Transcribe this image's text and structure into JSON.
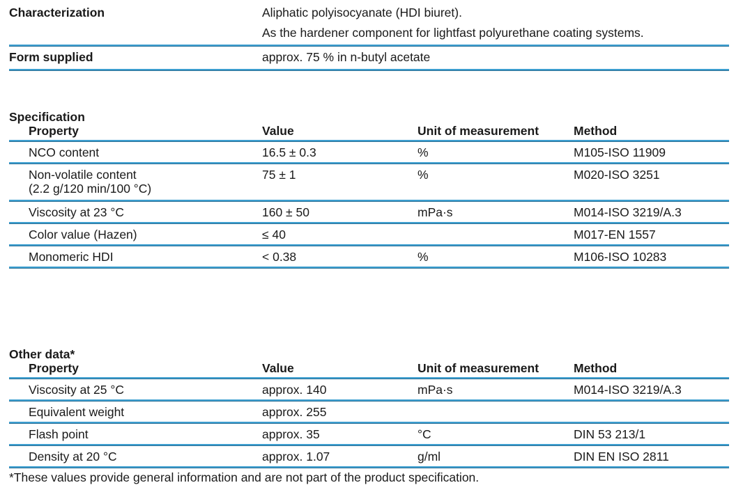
{
  "info": [
    {
      "label": "Characterization",
      "lines": [
        "Aliphatic polyisocyanate (HDI biuret).",
        "As the hardener component for lightfast polyurethane coating systems."
      ]
    },
    {
      "label": "Form supplied",
      "lines": [
        "approx. 75 % in n-butyl acetate"
      ]
    }
  ],
  "specification": {
    "title": "Specification",
    "headers": [
      "Property",
      "Value",
      "Unit of measurement",
      "Method"
    ],
    "rows": [
      {
        "property": "NCO content",
        "property2": "",
        "value": "16.5 ± 0.3",
        "unit": "%",
        "method": "M105-ISO 11909"
      },
      {
        "property": "Non-volatile content",
        "property2": "(2.2 g/120 min/100 °C)",
        "value": "75 ± 1",
        "unit": "%",
        "method": "M020-ISO 3251"
      },
      {
        "property": "Viscosity at 23 °C",
        "property2": "",
        "value": "160 ± 50",
        "unit": "mPa·s",
        "method": "M014-ISO 3219/A.3"
      },
      {
        "property": "Color value (Hazen)",
        "property2": "",
        "value": "≤ 40",
        "unit": "",
        "method": "M017-EN 1557"
      },
      {
        "property": "Monomeric HDI",
        "property2": "",
        "value": "< 0.38",
        "unit": "%",
        "method": "M106-ISO 10283"
      }
    ]
  },
  "other": {
    "title": "Other data*",
    "headers": [
      "Property",
      "Value",
      "Unit of measurement",
      "Method"
    ],
    "rows": [
      {
        "property": "Viscosity at 25 °C",
        "value": "approx. 140",
        "unit": "mPa·s",
        "method": "M014-ISO 3219/A.3"
      },
      {
        "property": "Equivalent weight",
        "value": "approx. 255",
        "unit": "",
        "method": ""
      },
      {
        "property": "Flash point",
        "value": "approx. 35",
        "unit": "°C",
        "method": "DIN 53 213/1"
      },
      {
        "property": "Density at 20 °C",
        "value": "approx. 1.07",
        "unit": "g/ml",
        "method": "DIN EN ISO 2811"
      }
    ],
    "footnote": "*These values provide general information and are not part of the product specification."
  },
  "colors": {
    "rule": "#3d9fd0"
  }
}
